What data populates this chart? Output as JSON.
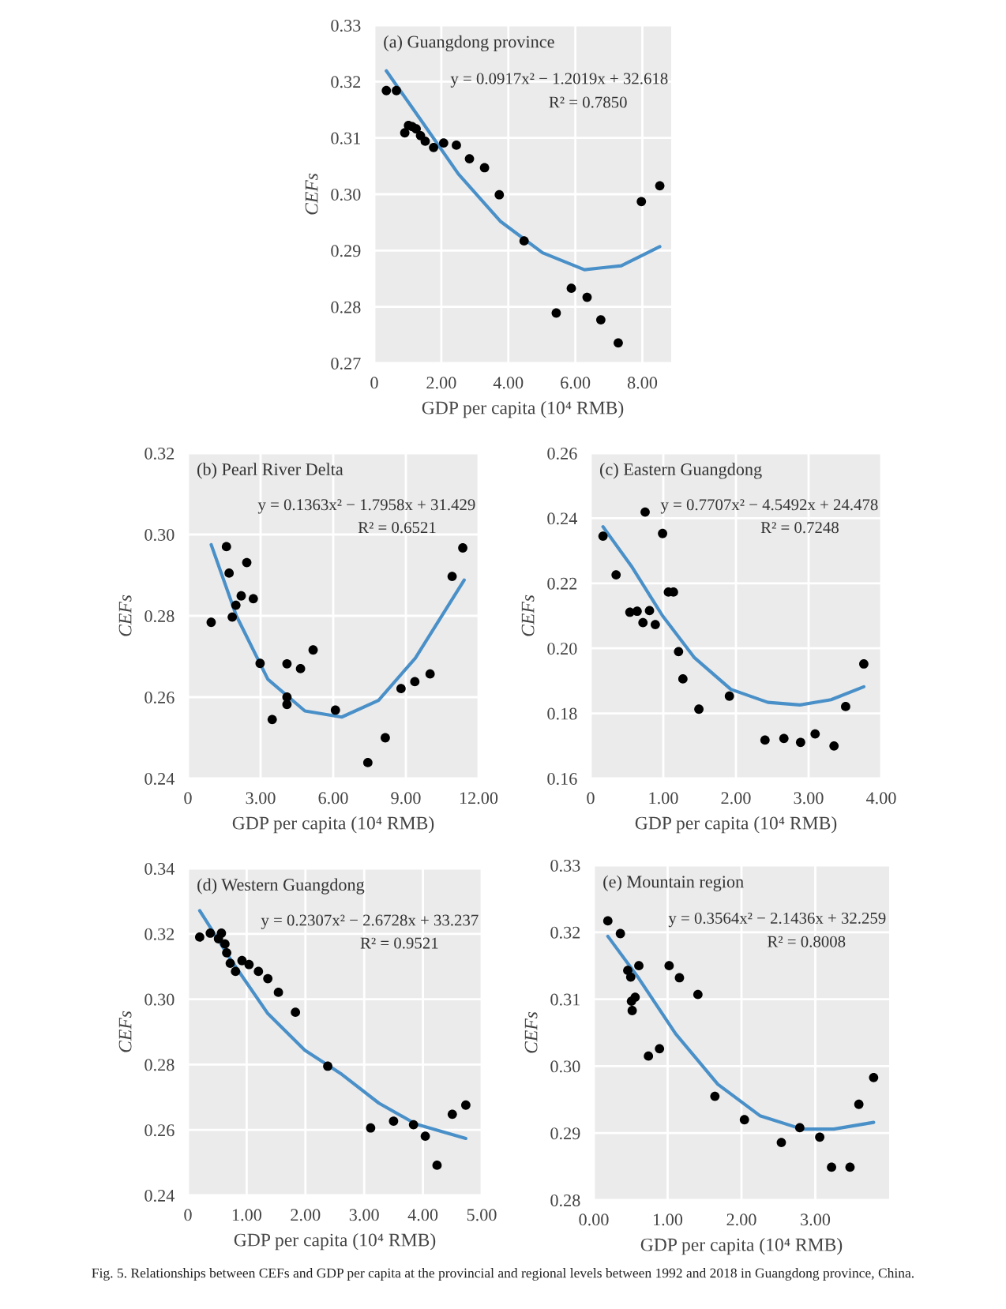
{
  "chart_data": [
    {
      "type": "scatter",
      "xlabel": "GDP per capita (10⁴ RMB)",
      "ylabel": "CEFs",
      "annotations": [
        "(a) Guangdong province",
        "y = 0.0917x² − 1.2019x + 32.618",
        "R² = 0.7850"
      ],
      "xlim": [
        0,
        8.86
      ],
      "xticks": [
        0,
        {
          "value": 2,
          "label": "2.00"
        },
        {
          "value": 4,
          "label": "4.00"
        },
        {
          "value": 6,
          "label": "6.00"
        },
        {
          "value": 8,
          "label": "8.00"
        }
      ],
      "ylim": [
        0.27,
        0.33
      ],
      "yticks": [
        {
          "value": 0.27,
          "label": "0.27"
        },
        {
          "value": 0.28,
          "label": "0.28"
        },
        {
          "value": 0.29,
          "label": "0.29"
        },
        {
          "value": 0.3,
          "label": "0.30"
        },
        {
          "value": 0.31,
          "label": "0.31"
        },
        {
          "value": 0.32,
          "label": "0.32"
        },
        {
          "value": 0.33,
          "label": "0.33"
        }
      ],
      "grid": true,
      "series": [
        {
          "color": "#000000",
          "marker": "circle",
          "x": [
            0.36,
            0.66,
            0.91,
            1.02,
            1.13,
            1.25,
            1.38,
            1.52,
            1.77,
            2.07,
            2.45,
            2.84,
            3.29,
            3.73,
            4.47,
            5.43,
            5.88,
            6.35,
            6.76,
            7.28,
            7.97,
            8.52
          ],
          "values": [
            0.3184,
            0.3184,
            0.3109,
            0.3122,
            0.312,
            0.3116,
            0.3104,
            0.3094,
            0.3083,
            0.3091,
            0.3087,
            0.3063,
            0.3047,
            0.2999,
            0.2917,
            0.2789,
            0.2833,
            0.2817,
            0.2777,
            0.2736,
            0.2987,
            0.3015
          ]
        },
        {
          "type": "line",
          "color": "#4a90c8",
          "x": [
            0.36,
            1.41,
            2.51,
            3.76,
            5.02,
            6.27,
            7.37,
            8.52
          ],
          "values": [
            0.3219,
            0.313,
            0.3036,
            0.2952,
            0.2896,
            0.2866,
            0.2873,
            0.2907
          ]
        }
      ]
    },
    {
      "type": "scatter",
      "xlabel": "GDP per capita (10⁴ RMB)",
      "ylabel": "CEFs",
      "annotations": [
        "(b) Pearl River Delta",
        "y = 0.1363x² − 1.7958x + 31.429",
        "R² = 0.6521"
      ],
      "xlim": [
        0,
        12
      ],
      "xticks": [
        0,
        {
          "value": 3,
          "label": "3.00"
        },
        {
          "value": 6,
          "label": "6.00"
        },
        {
          "value": 9,
          "label": "9.00"
        },
        {
          "value": 12,
          "label": "12.00"
        }
      ],
      "ylim": [
        0.24,
        0.32
      ],
      "yticks": [
        {
          "value": 0.24,
          "label": "0.24"
        },
        {
          "value": 0.26,
          "label": "0.26"
        },
        {
          "value": 0.28,
          "label": "0.28"
        },
        {
          "value": 0.3,
          "label": "0.30"
        },
        {
          "value": 0.32,
          "label": "0.32"
        }
      ],
      "grid": true,
      "series": [
        {
          "color": "#000000",
          "marker": "circle",
          "x": [
            0.96,
            1.59,
            1.7,
            1.83,
            1.98,
            2.2,
            2.43,
            2.7,
            2.98,
            3.48,
            4.09,
            4.09,
            4.09,
            4.65,
            5.17,
            6.09,
            7.43,
            8.15,
            8.8,
            9.37,
            10.0,
            10.91,
            11.35
          ],
          "values": [
            0.2784,
            0.297,
            0.2905,
            0.2797,
            0.2826,
            0.2849,
            0.2931,
            0.2842,
            0.2683,
            0.2545,
            0.2682,
            0.26,
            0.2582,
            0.267,
            0.2716,
            0.2568,
            0.2439,
            0.25,
            0.2621,
            0.2638,
            0.2657,
            0.2897,
            0.2967
          ]
        },
        {
          "type": "line",
          "color": "#4a90c8",
          "x": [
            0.96,
            2.0,
            3.3,
            4.83,
            6.35,
            7.87,
            9.39,
            11.41
          ],
          "values": [
            0.2975,
            0.28,
            0.2644,
            0.2566,
            0.2551,
            0.2592,
            0.2696,
            0.2888
          ]
        }
      ]
    },
    {
      "type": "scatter",
      "xlabel": "GDP per capita (10⁴ RMB)",
      "ylabel": "CEFs",
      "annotations": [
        "(c) Eastern Guangdong",
        "y = 0.7707x² − 4.5492x + 24.478",
        "R² = 0.7248"
      ],
      "xlim": [
        0,
        4
      ],
      "xticks": [
        0,
        {
          "value": 1,
          "label": "1.00"
        },
        {
          "value": 2,
          "label": "2.00"
        },
        {
          "value": 3,
          "label": "3.00"
        },
        {
          "value": 4,
          "label": "4.00"
        }
      ],
      "ylim": [
        0.16,
        0.26
      ],
      "yticks": [
        {
          "value": 0.16,
          "label": "0.16"
        },
        {
          "value": 0.18,
          "label": "0.18"
        },
        {
          "value": 0.2,
          "label": "0.20"
        },
        {
          "value": 0.22,
          "label": "0.22"
        },
        {
          "value": 0.24,
          "label": "0.24"
        },
        {
          "value": 0.26,
          "label": "0.26"
        }
      ],
      "grid": true,
      "series": [
        {
          "color": "#000000",
          "marker": "circle",
          "x": [
            0.17,
            0.35,
            0.54,
            0.64,
            0.72,
            0.75,
            0.81,
            0.89,
            0.99,
            1.07,
            1.14,
            1.21,
            1.27,
            1.49,
            1.91,
            2.4,
            2.66,
            2.89,
            3.09,
            3.35,
            3.51,
            3.76
          ],
          "values": [
            0.2345,
            0.2226,
            0.2111,
            0.2114,
            0.2079,
            0.2419,
            0.2116,
            0.2073,
            0.2353,
            0.2173,
            0.2173,
            0.199,
            0.1906,
            0.1813,
            0.1853,
            0.1718,
            0.1723,
            0.1711,
            0.1737,
            0.17,
            0.1821,
            0.1952
          ]
        },
        {
          "type": "line",
          "color": "#4a90c8",
          "x": [
            0.17,
            0.56,
            0.99,
            1.43,
            1.93,
            2.44,
            2.88,
            3.31,
            3.76
          ],
          "values": [
            0.2374,
            0.2253,
            0.21,
            0.1971,
            0.1874,
            0.1834,
            0.1826,
            0.1842,
            0.1882
          ]
        }
      ]
    },
    {
      "type": "scatter",
      "xlabel": "GDP per capita (10⁴ RMB)",
      "ylabel": "CEFs",
      "annotations": [
        "(d) Western Guangdong",
        "y = 0.2307x² − 2.6728x + 33.237",
        "R² = 0.9521"
      ],
      "xlim": [
        0,
        5
      ],
      "xticks": [
        0,
        {
          "value": 1,
          "label": "1.00"
        },
        {
          "value": 2,
          "label": "2.00"
        },
        {
          "value": 3,
          "label": "3.00"
        },
        {
          "value": 4,
          "label": "4.00"
        },
        {
          "value": 5,
          "label": "5.00"
        }
      ],
      "ylim": [
        0.24,
        0.34
      ],
      "yticks": [
        {
          "value": 0.24,
          "label": "0.24"
        },
        {
          "value": 0.26,
          "label": "0.26"
        },
        {
          "value": 0.28,
          "label": "0.28"
        },
        {
          "value": 0.3,
          "label": "0.30"
        },
        {
          "value": 0.32,
          "label": "0.32"
        },
        {
          "value": 0.34,
          "label": "0.34"
        }
      ],
      "grid": true,
      "series": [
        {
          "color": "#000000",
          "marker": "circle",
          "x": [
            0.2,
            0.38,
            0.52,
            0.57,
            0.63,
            0.66,
            0.72,
            0.81,
            0.92,
            1.04,
            1.2,
            1.36,
            1.54,
            1.83,
            2.38,
            3.11,
            3.5,
            3.84,
            4.04,
            4.24,
            4.5,
            4.73
          ],
          "values": [
            0.319,
            0.3202,
            0.3185,
            0.3202,
            0.3169,
            0.3142,
            0.311,
            0.3085,
            0.3118,
            0.3106,
            0.3085,
            0.3063,
            0.3021,
            0.296,
            0.2795,
            0.2606,
            0.2627,
            0.2616,
            0.2581,
            0.2492,
            0.2648,
            0.2676
          ]
        },
        {
          "type": "line",
          "color": "#4a90c8",
          "x": [
            0.2,
            0.74,
            1.36,
            1.99,
            2.62,
            3.25,
            3.88,
            4.73
          ],
          "values": [
            0.3271,
            0.3118,
            0.2956,
            0.2844,
            0.277,
            0.2682,
            0.2618,
            0.2574
          ]
        }
      ]
    },
    {
      "type": "scatter",
      "xlabel": "GDP per capita (10⁴ RMB)",
      "ylabel": "CEFs",
      "annotations": [
        "(e) Mountain region",
        "y = 0.3564x² − 2.1436x + 32.259",
        "R² = 0.8008",
        "Fig. 5. Relationships between CEFs and GDP per capita at the provincial and regional levels between 1992 and 2018 in Guangdong province, China."
      ],
      "xlim": [
        0,
        4
      ],
      "xticks": [
        {
          "value": 0,
          "label": "0.00"
        },
        {
          "value": 1,
          "label": "1.00"
        },
        {
          "value": 2,
          "label": "2.00"
        },
        {
          "value": 3,
          "label": "3.00"
        }
      ],
      "ylim": [
        0.28,
        0.33
      ],
      "yticks": [
        {
          "value": 0.28,
          "label": "0.28"
        },
        {
          "value": 0.29,
          "label": "0.29"
        },
        {
          "value": 0.3,
          "label": "0.30"
        },
        {
          "value": 0.31,
          "label": "0.31"
        },
        {
          "value": 0.32,
          "label": "0.32"
        },
        {
          "value": 0.33,
          "label": "0.33"
        }
      ],
      "grid": true,
      "series": [
        {
          "color": "#000000",
          "marker": "circle",
          "x": [
            0.19,
            0.36,
            0.46,
            0.5,
            0.51,
            0.52,
            0.56,
            0.61,
            0.74,
            0.89,
            1.02,
            1.16,
            1.41,
            1.64,
            2.04,
            2.54,
            2.79,
            3.06,
            3.22,
            3.47,
            3.59,
            3.79
          ],
          "values": [
            0.3217,
            0.3198,
            0.3143,
            0.3133,
            0.3097,
            0.3083,
            0.3103,
            0.315,
            0.3015,
            0.3026,
            0.315,
            0.3132,
            0.3107,
            0.2955,
            0.292,
            0.2886,
            0.2908,
            0.2894,
            0.2849,
            0.2849,
            0.2943,
            0.2983
          ]
        },
        {
          "type": "line",
          "color": "#4a90c8",
          "x": [
            0.19,
            0.61,
            1.11,
            1.68,
            2.25,
            2.82,
            3.25,
            3.79
          ],
          "values": [
            0.3194,
            0.3131,
            0.3048,
            0.2973,
            0.2926,
            0.2906,
            0.2906,
            0.2916
          ]
        }
      ]
    }
  ]
}
